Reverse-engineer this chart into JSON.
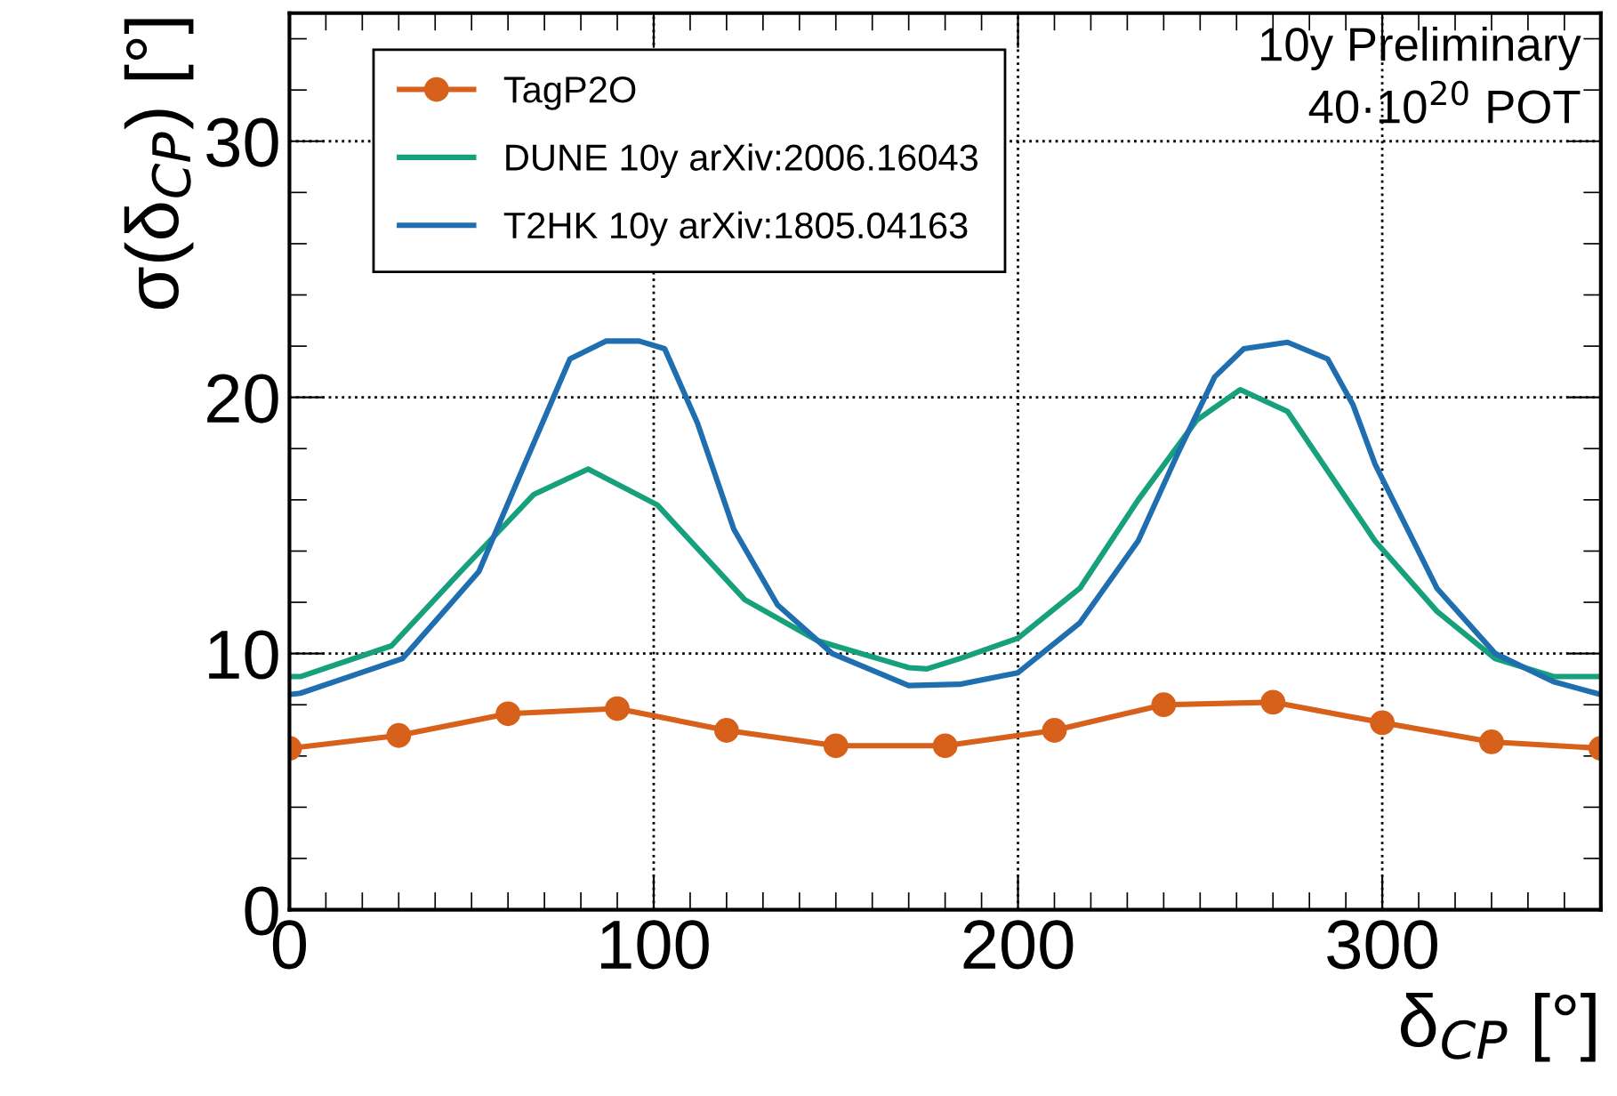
{
  "chart_data": {
    "type": "line",
    "xlabel": "δ$_{CP}$ [°]",
    "ylabel": "σ(δ$_{CP}$) [°]",
    "annotations": [
      "10y Preliminary",
      "40·10$^{20}$ POT"
    ],
    "xlim": [
      0,
      360
    ],
    "xticks": [
      0,
      100,
      200,
      300
    ],
    "ylim": [
      0,
      35
    ],
    "yticks": [
      0,
      10,
      20,
      30
    ],
    "grid": true,
    "legend": "top left",
    "series": [
      {
        "name": "TagP2O",
        "color": "#d7601a",
        "marker": "circle",
        "x": [
          0,
          30,
          60,
          90,
          120,
          150,
          180,
          210,
          240,
          270,
          300,
          330,
          360
        ],
        "values": [
          6.3,
          6.8,
          7.65,
          7.85,
          7.0,
          6.4,
          6.4,
          7.0,
          8.0,
          8.1,
          7.3,
          6.55,
          6.3
        ]
      },
      {
        "name": "DUNE 10y arXiv:2006.16043",
        "color": "#17a07c",
        "x": [
          0,
          3,
          28,
          47,
          67,
          82,
          101,
          125,
          145,
          170,
          175,
          184,
          200,
          217,
          233,
          249,
          261,
          274,
          298,
          315,
          331,
          347,
          360
        ],
        "values": [
          9.1,
          9.1,
          10.3,
          13.2,
          16.2,
          17.2,
          15.8,
          12.1,
          10.5,
          9.45,
          9.4,
          9.8,
          10.6,
          12.55,
          16.0,
          19.1,
          20.3,
          19.45,
          14.4,
          11.65,
          9.8,
          9.1,
          9.1
        ]
      },
      {
        "name": "T2HK 10y arXiv:1805.04163",
        "color": "#1f6fb0",
        "x": [
          0,
          3,
          31,
          52,
          64,
          77,
          87,
          96,
          103,
          112,
          122,
          134,
          149,
          170,
          184,
          200,
          217,
          233,
          244,
          254,
          262,
          274,
          285,
          292,
          298,
          315,
          331,
          347,
          360
        ],
        "values": [
          8.4,
          8.45,
          9.8,
          13.2,
          17.2,
          21.5,
          22.2,
          22.2,
          21.9,
          19.0,
          14.85,
          11.9,
          10.0,
          8.75,
          8.8,
          9.25,
          11.2,
          14.4,
          17.85,
          20.8,
          21.9,
          22.15,
          21.5,
          19.7,
          17.4,
          12.55,
          10.0,
          8.9,
          8.4
        ]
      }
    ]
  }
}
